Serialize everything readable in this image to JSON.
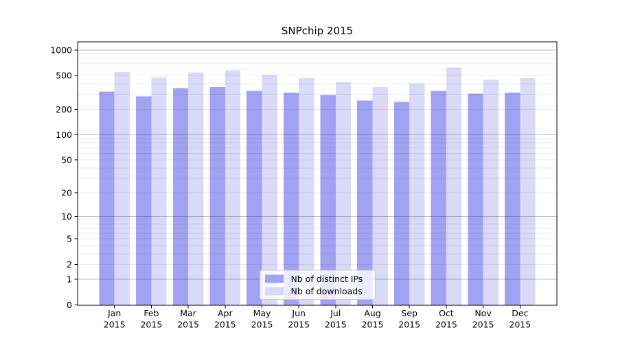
{
  "chart_data": {
    "type": "bar",
    "title": "SNPchip 2015",
    "categories": [
      "Jan",
      "Feb",
      "Mar",
      "Apr",
      "May",
      "Jun",
      "Jul",
      "Aug",
      "Sep",
      "Oct",
      "Nov",
      "Dec"
    ],
    "year_suffix": "2015",
    "series": [
      {
        "name": "Nb of distinct IPs",
        "color": "#a2a2f2",
        "values": [
          325,
          285,
          355,
          365,
          330,
          315,
          295,
          255,
          245,
          330,
          305,
          315
        ]
      },
      {
        "name": "Nb of downloads",
        "color": "#dadaf8",
        "values": [
          550,
          475,
          545,
          580,
          510,
          465,
          420,
          365,
          405,
          620,
          450,
          465
        ]
      }
    ],
    "yscale": "log1p",
    "ylim": [
      0,
      1250
    ],
    "yticks": [
      1000,
      500,
      200,
      100,
      50,
      20,
      10,
      5,
      2,
      1,
      0
    ],
    "grid": true,
    "legend_position": "lower center",
    "xlabel": "",
    "ylabel": ""
  }
}
